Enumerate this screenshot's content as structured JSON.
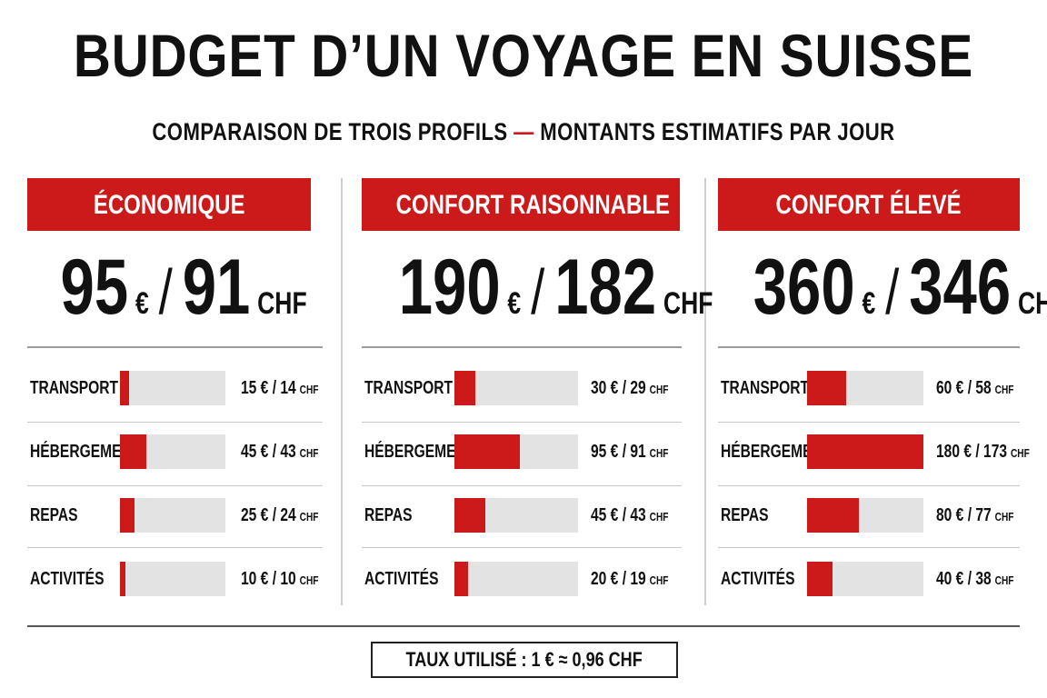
{
  "title": "BUDGET D’UN VOYAGE EN SUISSE",
  "subtitle": {
    "left": "COMPARAISON DE TROIS PROFILS",
    "dash": "—",
    "right": "MONTANTS ESTIMATIFS PAR JOUR"
  },
  "colors": {
    "accent": "#cc1a1a",
    "track": "#e3e3e3",
    "text": "#111111"
  },
  "chart_data": {
    "type": "bar",
    "unit_eur": "€",
    "unit_chf": "CHF",
    "categories": [
      "TRANSPORT",
      "HÉBERGEMENT",
      "REPAS",
      "ACTIVITÉS"
    ],
    "profiles": [
      {
        "name": "ÉCONOMIQUE",
        "total_eur": "95",
        "total_chf": "91",
        "series": [
          {
            "category": "TRANSPORT",
            "eur": 15,
            "chf": 14,
            "label": "15 € / 14"
          },
          {
            "category": "HÉBERGEMENT",
            "eur": 45,
            "chf": 43,
            "label": "45 € / 43"
          },
          {
            "category": "REPAS",
            "eur": 25,
            "chf": 24,
            "label": "25 € / 24"
          },
          {
            "category": "ACTIVITÉS",
            "eur": 10,
            "chf": 10,
            "label": "10 € / 10"
          }
        ]
      },
      {
        "name": "CONFORT RAISONNABLE",
        "total_eur": "190",
        "total_chf": "182",
        "series": [
          {
            "category": "TRANSPORT",
            "eur": 30,
            "chf": 29,
            "label": "30 € / 29"
          },
          {
            "category": "HÉBERGEMENT",
            "eur": 95,
            "chf": 91,
            "label": "95 € / 91"
          },
          {
            "category": "REPAS",
            "eur": 45,
            "chf": 43,
            "label": "45 € / 43"
          },
          {
            "category": "ACTIVITÉS",
            "eur": 20,
            "chf": 19,
            "label": "20 € / 19"
          }
        ]
      },
      {
        "name": "CONFORT ÉLEVÉ",
        "total_eur": "360",
        "total_chf": "346",
        "series": [
          {
            "category": "TRANSPORT",
            "eur": 60,
            "chf": 58,
            "label": "60 € / 58"
          },
          {
            "category": "HÉBERGEMENT",
            "eur": 180,
            "chf": 173,
            "label": "180 € / 173"
          },
          {
            "category": "REPAS",
            "eur": 80,
            "chf": 77,
            "label": "80 € / 77"
          },
          {
            "category": "ACTIVITÉS",
            "eur": 40,
            "chf": 38,
            "label": "40 € / 38"
          }
        ]
      }
    ],
    "bar_max_eur": 180
  },
  "footer": {
    "rate": "TAUX UTILISÉ : 1 € ≈ 0,96 CHF"
  }
}
